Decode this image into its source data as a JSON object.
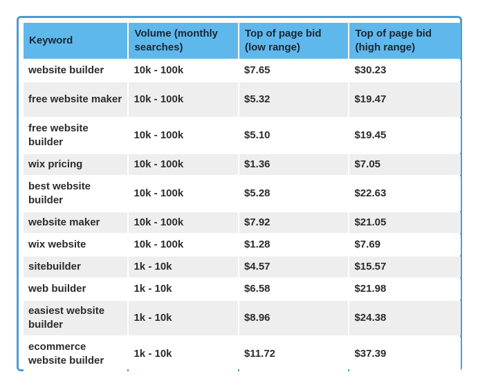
{
  "table": {
    "headers": [
      "Keyword",
      "Volume (monthly searches)",
      "Top of page bid (low range)",
      "Top of page bid (high range)"
    ],
    "rows": [
      [
        "website builder",
        "10k - 100k",
        "$7.65",
        "$30.23"
      ],
      [
        "free website maker",
        "10k - 100k",
        "$5.32",
        "$19.47"
      ],
      [
        "free website builder",
        "10k - 100k",
        "$5.10",
        "$19.45"
      ],
      [
        "wix pricing",
        "10k - 100k",
        "$1.36",
        "$7.05"
      ],
      [
        "best website builder",
        "10k - 100k",
        "$5.28",
        "$22.63"
      ],
      [
        "website maker",
        "10k - 100k",
        "$7.92",
        "$21.05"
      ],
      [
        "wix website",
        "10k - 100k",
        "$1.28",
        "$7.69"
      ],
      [
        "sitebuilder",
        "1k - 10k",
        "$4.57",
        "$15.57"
      ],
      [
        "web builder",
        "1k - 10k",
        "$6.58",
        "$21.98"
      ],
      [
        "easiest website builder",
        "1k - 10k",
        "$8.96",
        "$24.38"
      ],
      [
        "ecommerce website builder",
        "1k - 10k",
        "$11.72",
        "$37.39"
      ]
    ]
  },
  "colors": {
    "border": "#4a9cd6",
    "header_bg": "#5fb8ec",
    "row_alt_bg": "#eeeeee"
  }
}
